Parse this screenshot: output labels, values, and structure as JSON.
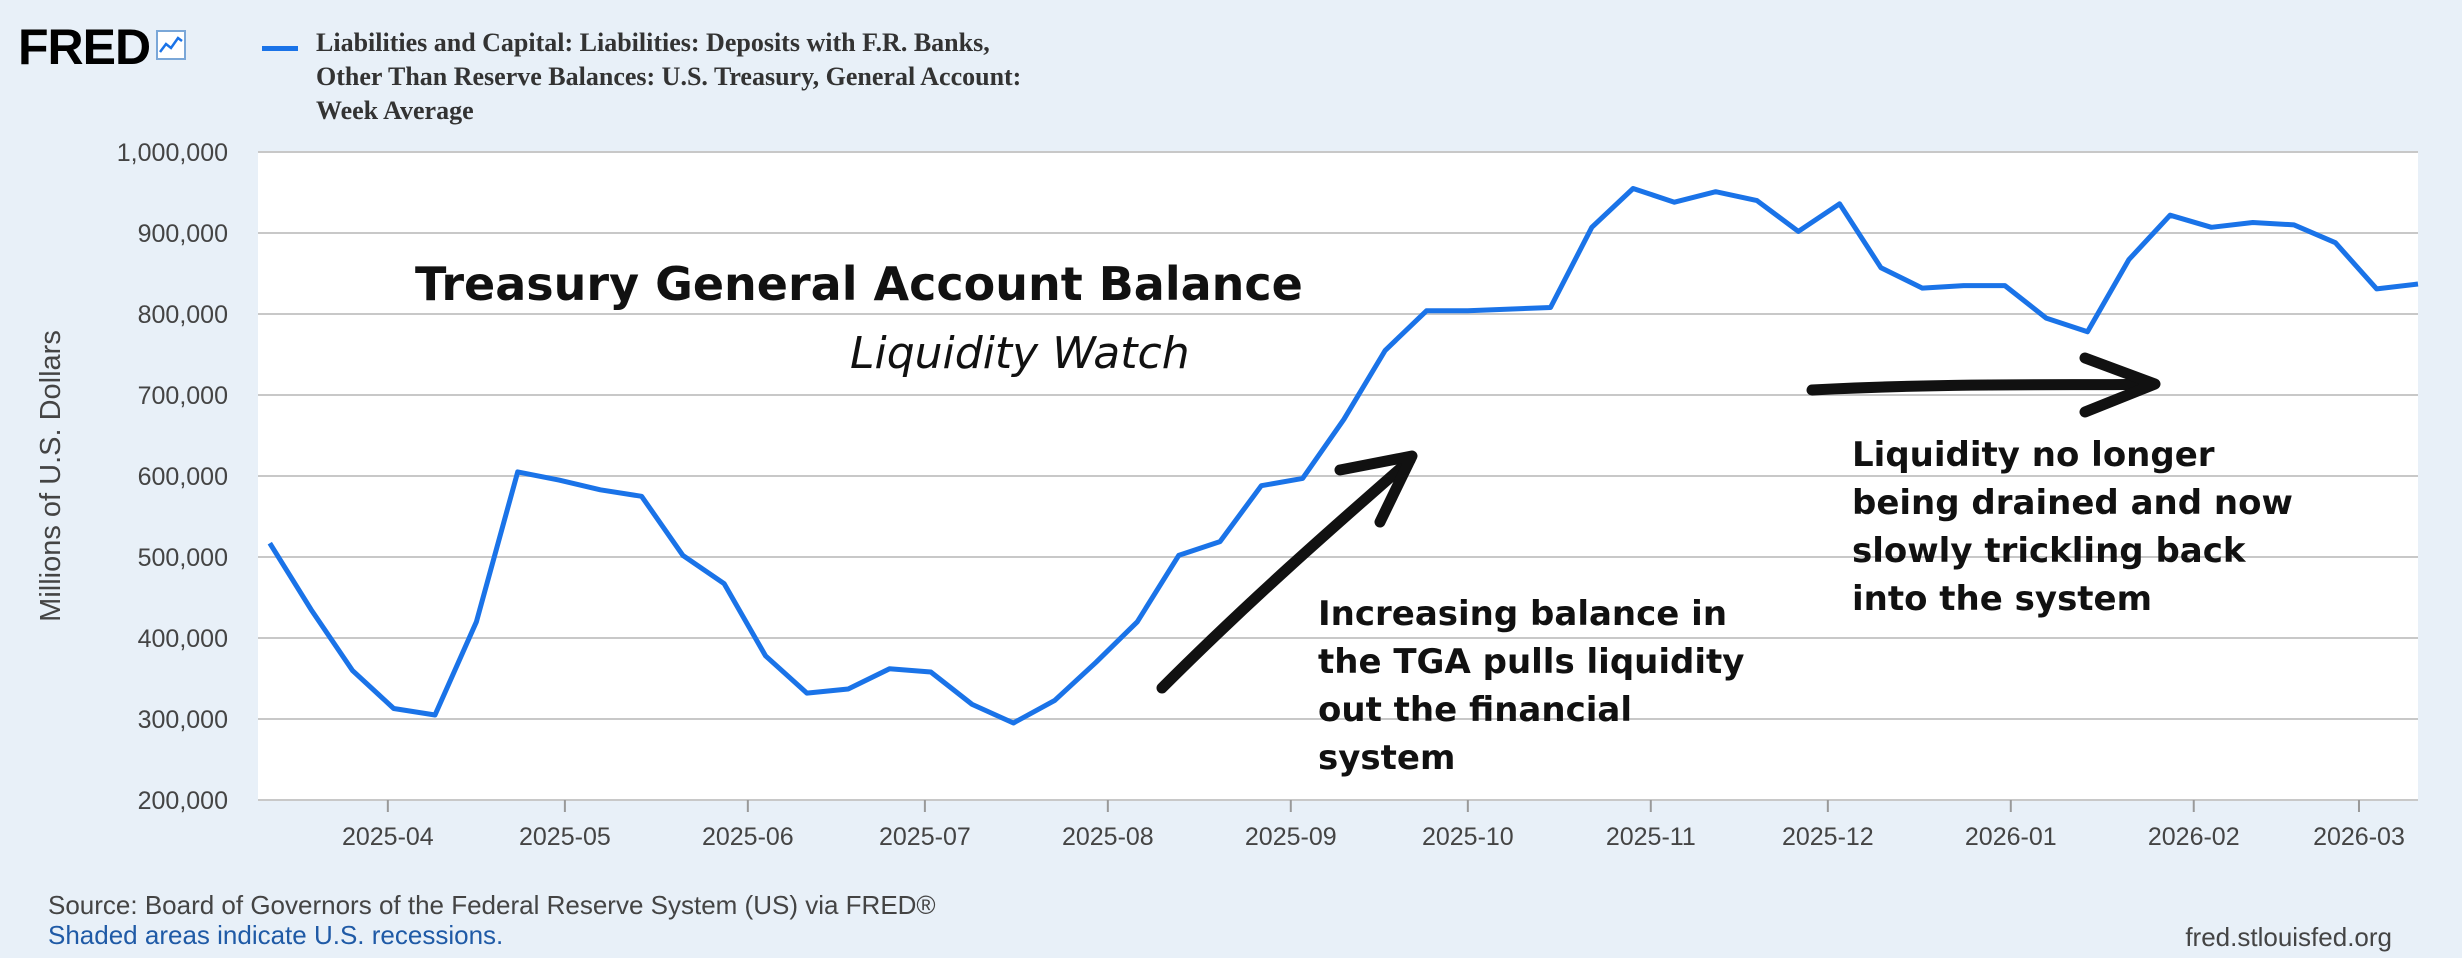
{
  "header": {
    "logo_text": "FRED",
    "legend_label": "Liabilities and Capital: Liabilities: Deposits with F.R. Banks, Other Than Reserve Balances: U.S. Treasury, General Account: Week Average"
  },
  "overlay": {
    "title": "Treasury General Account Balance",
    "subtitle": "Liquidity Watch",
    "annotation_left": [
      "Increasing balance in",
      "the TGA pulls liquidity",
      "out the financial",
      "system"
    ],
    "annotation_right": [
      "Liquidity no longer",
      "being drained and now",
      "slowly trickling back",
      "into the system"
    ]
  },
  "footer": {
    "source": "Source: Board of Governors of the Federal Reserve System (US) via FRED®",
    "note": "Shaded areas indicate U.S. recessions.",
    "url": "fred.stlouisfed.org"
  },
  "colors": {
    "line": "#1a73e8",
    "background": "#e8f0f8",
    "plot": "#ffffff",
    "grid": "#c8c8c8"
  },
  "chart_data": {
    "type": "line",
    "ylabel": "Millions of U.S. Dollars",
    "xlabel": "",
    "ylim": [
      200000,
      1000000
    ],
    "yticks": [
      200000,
      300000,
      400000,
      500000,
      600000,
      700000,
      800000,
      900000,
      1000000
    ],
    "ytick_labels": [
      "200,000",
      "300,000",
      "400,000",
      "500,000",
      "600,000",
      "700,000",
      "800,000",
      "900,000",
      "1,000,000"
    ],
    "xlim": [
      "2025-03-10",
      "2026-03-11"
    ],
    "xtick_dates": [
      "2025-04-01",
      "2025-05-01",
      "2025-06-01",
      "2025-07-01",
      "2025-08-01",
      "2025-09-01",
      "2025-10-01",
      "2025-11-01",
      "2025-12-01",
      "2026-01-01",
      "2026-02-01",
      "2026-03-01"
    ],
    "xtick_labels": [
      "2025-04",
      "2025-05",
      "2025-06",
      "2025-07",
      "2025-08",
      "2025-09",
      "2025-10",
      "2025-11",
      "2025-12",
      "2026-01",
      "2026-02",
      "2026-03"
    ],
    "grid": true,
    "series": [
      {
        "name": "Liabilities and Capital: Liabilities: Deposits with F.R. Banks, Other Than Reserve Balances: U.S. Treasury, General Account: Week Average",
        "x": [
          "2025-03-12",
          "2025-03-19",
          "2025-03-26",
          "2025-04-02",
          "2025-04-09",
          "2025-04-16",
          "2025-04-23",
          "2025-04-30",
          "2025-05-07",
          "2025-05-14",
          "2025-05-21",
          "2025-05-28",
          "2025-06-04",
          "2025-06-11",
          "2025-06-18",
          "2025-06-25",
          "2025-07-02",
          "2025-07-09",
          "2025-07-16",
          "2025-07-23",
          "2025-07-30",
          "2025-08-06",
          "2025-08-13",
          "2025-08-20",
          "2025-08-27",
          "2025-09-03",
          "2025-09-10",
          "2025-09-17",
          "2025-09-24",
          "2025-10-01",
          "2025-10-08",
          "2025-10-15",
          "2025-10-22",
          "2025-10-29",
          "2025-11-05",
          "2025-11-12",
          "2025-11-19",
          "2025-11-26",
          "2025-12-03",
          "2025-12-10",
          "2025-12-17",
          "2025-12-24",
          "2025-12-31",
          "2026-01-07",
          "2026-01-14",
          "2026-01-21",
          "2026-01-28",
          "2026-02-04",
          "2026-02-11",
          "2026-02-18",
          "2026-02-25",
          "2026-03-04",
          "2026-03-11"
        ],
        "y": [
          517000,
          435000,
          360000,
          313000,
          305000,
          420000,
          605000,
          595000,
          583000,
          575000,
          502000,
          467000,
          378000,
          332000,
          337000,
          362000,
          358000,
          318000,
          295000,
          323000,
          370000,
          420000,
          502000,
          519000,
          588000,
          597000,
          670000,
          755000,
          804000,
          804000,
          806000,
          808000,
          907000,
          955000,
          938000,
          951000,
          940000,
          902000,
          936000,
          857000,
          832000,
          835000,
          835000,
          795000,
          778000,
          867000,
          922000,
          907000,
          913000,
          910000,
          888000,
          831000,
          837000
        ]
      }
    ]
  }
}
